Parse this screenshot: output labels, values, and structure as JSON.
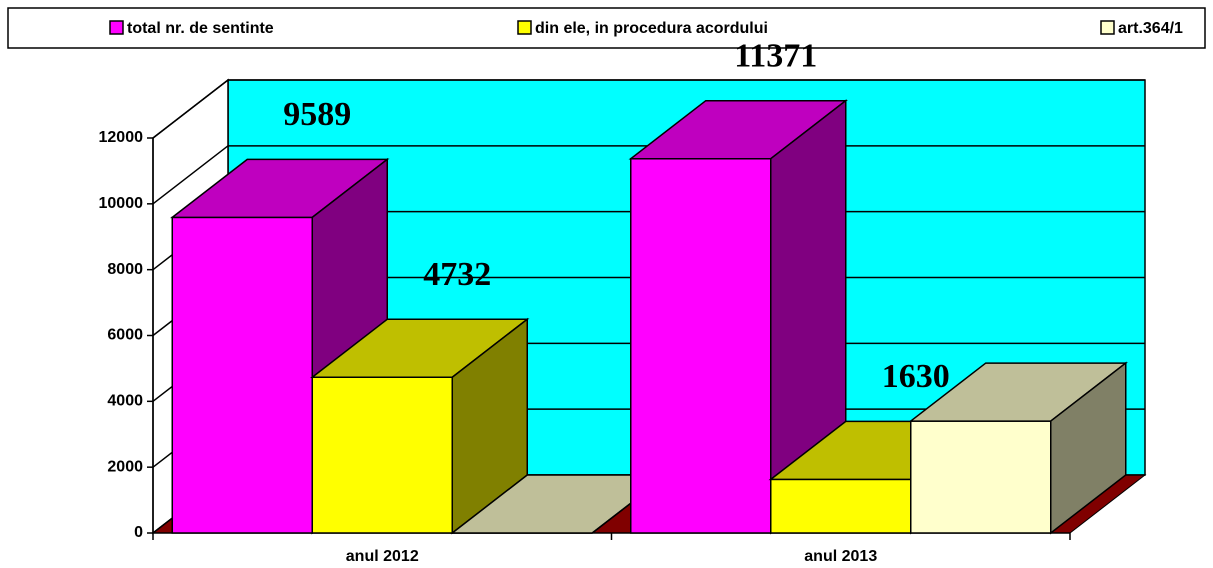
{
  "chart_data": {
    "type": "bar3d",
    "categories": [
      "anul 2012",
      "anul 2013"
    ],
    "series": [
      {
        "name": "total nr. de sentinte",
        "color": "#ff00ff",
        "values": [
          9589,
          11371
        ],
        "data_labels": true
      },
      {
        "name": "din ele, in procedura acordului",
        "color": "#ffff00",
        "values": [
          4732,
          1630
        ],
        "data_labels": true
      },
      {
        "name": "art.364/1",
        "color": "#ffffcc",
        "values": [
          0,
          3400
        ],
        "data_labels": false
      }
    ],
    "ylim": [
      0,
      12000
    ],
    "yticks": [
      0,
      2000,
      4000,
      6000,
      8000,
      10000,
      12000
    ],
    "grid": true,
    "wall_color": "#00ffff",
    "floor_color": "#800000",
    "legend": "top"
  }
}
